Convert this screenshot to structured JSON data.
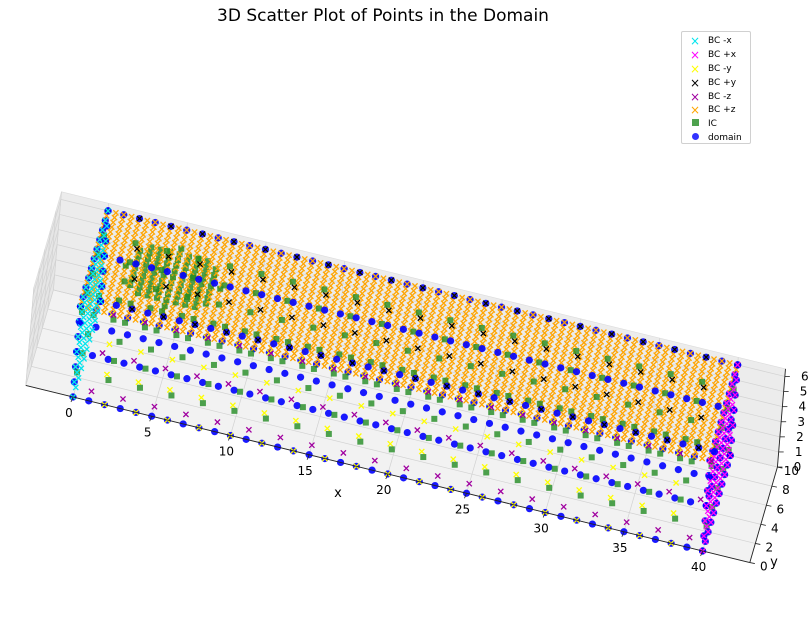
{
  "chart_data": {
    "type": "scatter",
    "projection": "3d",
    "title": "3D Scatter Plot of Points in the Domain",
    "xlabel": "x",
    "ylabel": "y",
    "zlabel": "",
    "xlim": [
      -3,
      43
    ],
    "ylim": [
      0,
      10
    ],
    "zlim": [
      0,
      6.5
    ],
    "x_ticks": [
      0,
      5,
      10,
      15,
      20,
      25,
      30,
      35,
      40
    ],
    "y_ticks": [
      0,
      2,
      4,
      6,
      8,
      10
    ],
    "z_ticks": [
      0,
      1,
      2,
      3,
      4,
      5,
      6
    ],
    "grid": true,
    "legend_position": "top-right",
    "domain_box": {
      "x": [
        0,
        40
      ],
      "y": [
        0,
        10
      ],
      "z": [
        0,
        6
      ]
    },
    "ic_sphere": {
      "center": [
        5,
        5,
        6
      ],
      "radius": 3
    },
    "series": [
      {
        "name": "BC -x",
        "marker": "x",
        "color": "#00e5ee",
        "face": "x=0",
        "spacing": 1
      },
      {
        "name": "BC +x",
        "marker": "x",
        "color": "#ff00ff",
        "face": "x=40",
        "spacing": 1
      },
      {
        "name": "BC -y",
        "marker": "x",
        "color": "#ffff00",
        "face": "y=0",
        "spacing": 2
      },
      {
        "name": "BC +y",
        "marker": "x",
        "color": "#000000",
        "face": "y=10",
        "spacing": 2
      },
      {
        "name": "BC -z",
        "marker": "x",
        "color": "#a000a0",
        "face": "z=0",
        "spacing": 2
      },
      {
        "name": "BC +z",
        "marker": "x",
        "color": "#ffa500",
        "face": "z=6",
        "spacing": 0.5
      },
      {
        "name": "IC",
        "marker": "s",
        "color": "#228b22",
        "region": "sphere + lattice",
        "spacing": 2
      },
      {
        "name": "domain",
        "marker": "o",
        "color": "#0000ff",
        "region": "edges",
        "spacing": 1
      }
    ]
  }
}
